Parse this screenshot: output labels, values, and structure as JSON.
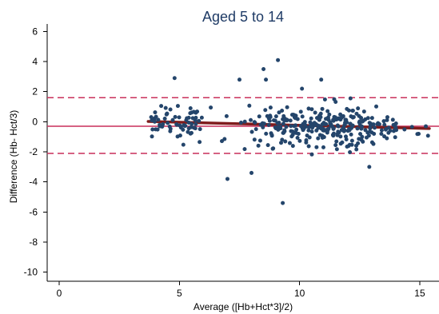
{
  "chart_data": {
    "type": "scatter",
    "title": "Aged 5 to 14",
    "xlabel": "Average ([Hb+Hct*3]/2)",
    "ylabel": "Difference (Hb- Hct/3)",
    "xlim": [
      -0.5,
      15.8
    ],
    "ylim": [
      -10.6,
      6.5
    ],
    "x_ticks": [
      0,
      5,
      10,
      15
    ],
    "y_ticks": [
      -10,
      -8,
      -6,
      -4,
      -2,
      0,
      2,
      4,
      6
    ],
    "grid": false,
    "legend": "none",
    "reference_lines": {
      "mean": -0.3,
      "upper_limit": 1.6,
      "lower_limit": -2.1,
      "fit_line": [
        [
          3.7,
          0.02
        ],
        [
          15.4,
          -0.45
        ]
      ]
    },
    "colors": {
      "points": "#24456b",
      "reference_lines": "#c92f5a",
      "fit_line": "#7f1c1c",
      "title": "#1f3b66"
    },
    "outliers": [
      [
        4.8,
        2.9
      ],
      [
        7.0,
        -3.8
      ],
      [
        7.5,
        2.8
      ],
      [
        8.0,
        -3.4
      ],
      [
        8.5,
        3.5
      ],
      [
        8.6,
        2.8
      ],
      [
        9.1,
        4.1
      ],
      [
        9.3,
        -5.4
      ],
      [
        10.1,
        2.2
      ],
      [
        10.9,
        2.8
      ],
      [
        12.9,
        -3.0
      ]
    ],
    "points_generated": {
      "n": 375,
      "x_range": [
        3.8,
        15.4
      ],
      "y_range": [
        -2.6,
        1.7
      ],
      "peak_x": 11.0
    }
  }
}
